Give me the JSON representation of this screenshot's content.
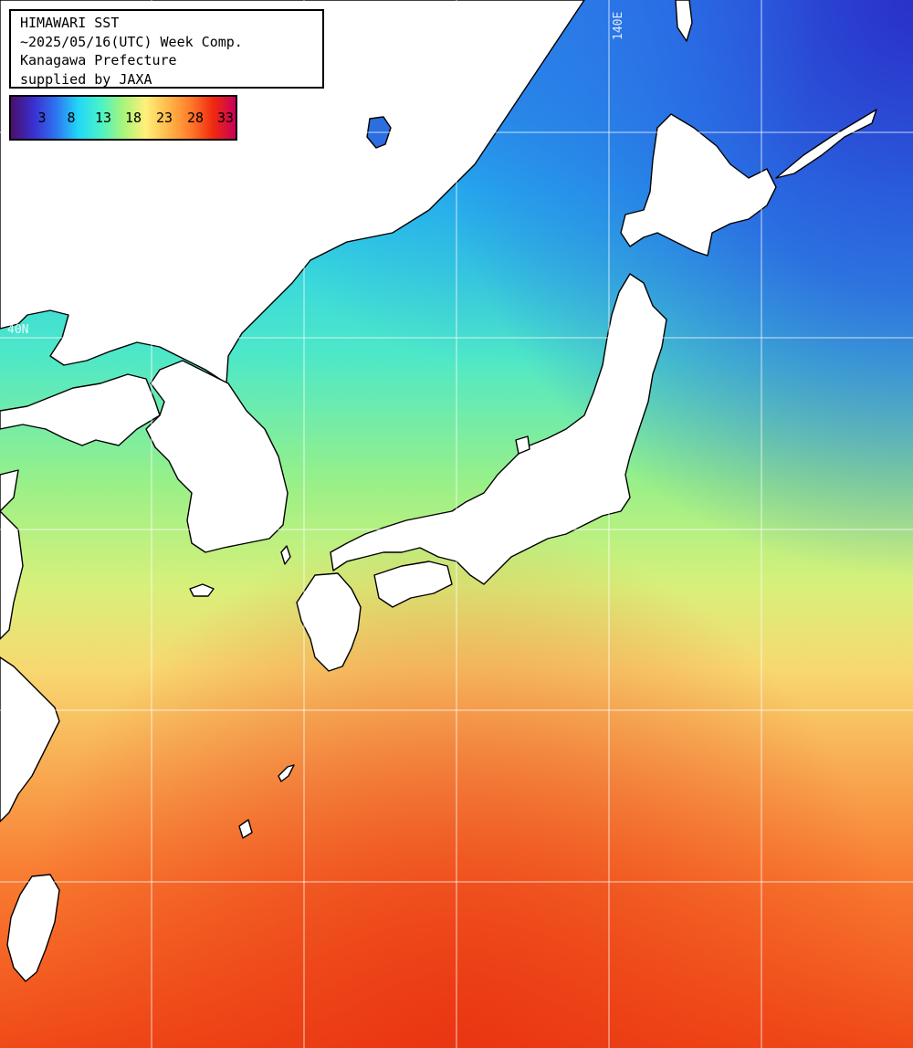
{
  "map": {
    "title_lines": [
      "HIMAWARI SST",
      "~2025/05/16(UTC) Week Comp.",
      "Kanagawa Prefecture",
      "supplied by JAXA"
    ],
    "legend": {
      "ticks": [
        "3",
        "8",
        "13",
        "18",
        "23",
        "28",
        "33"
      ],
      "gradient_colors": [
        "#4a0f6a",
        "#3a2fd0",
        "#2f73f0",
        "#22d7f8",
        "#4af2c8",
        "#a8f47a",
        "#fff07a",
        "#ffb84a",
        "#ff7a2a",
        "#f02a10",
        "#c8005a"
      ]
    },
    "grid_labels": {
      "longitude": "140E",
      "latitude": "40N"
    },
    "colors": {
      "land": "#ffffff",
      "coastline": "#000000",
      "gridline": "#ffffff"
    }
  }
}
